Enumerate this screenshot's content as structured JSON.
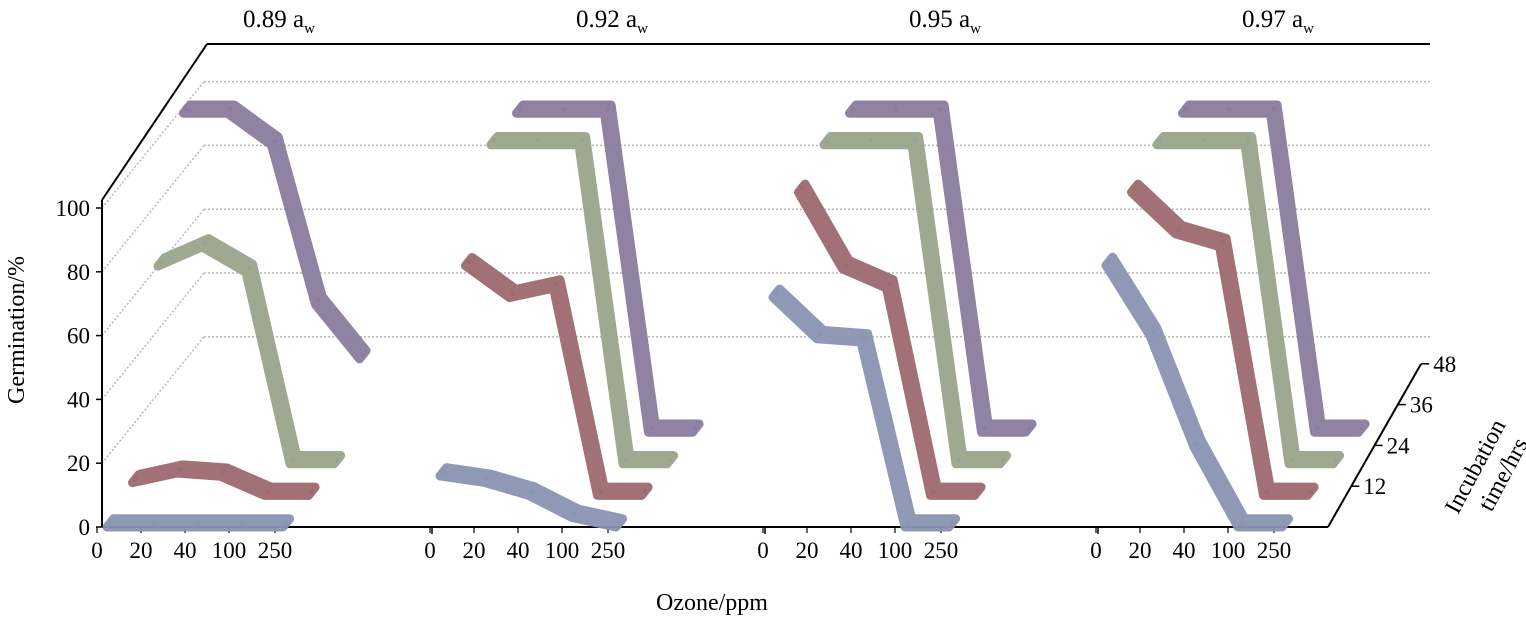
{
  "chart_data": {
    "type": "line",
    "chart_kind": "3d-ribbon-line",
    "xlabel": "Ozone/ppm",
    "ylabel": "Germination/%",
    "zlabel_line1": "Incubation",
    "zlabel_line2": "time/hrs",
    "categories": [
      "0",
      "20",
      "40",
      "100",
      "250"
    ],
    "yticks": [
      "0",
      "20",
      "40",
      "60",
      "80",
      "100"
    ],
    "ylim": [
      0,
      100
    ],
    "zticks": [
      "12",
      "24",
      "36",
      "48"
    ],
    "grid": true,
    "panel_titles": [
      {
        "main": "0.89 a",
        "sub": "w"
      },
      {
        "main": "0.92 a",
        "sub": "w"
      },
      {
        "main": "0.95 a",
        "sub": "w"
      },
      {
        "main": "0.97 a",
        "sub": "w"
      }
    ],
    "series_colors": {
      "12": "#8a94b3",
      "24": "#9e6a6e",
      "36": "#9aa48c",
      "48": "#8a7c9e"
    },
    "panels": [
      {
        "series": [
          {
            "time": "12",
            "values": [
              0,
              0,
              0,
              0,
              0
            ]
          },
          {
            "time": "24",
            "values": [
              4,
              7,
              6,
              0,
              0
            ]
          },
          {
            "time": "36",
            "values": [
              62,
              68,
              60,
              0,
              0
            ]
          },
          {
            "time": "48",
            "values": [
              100,
              100,
              90,
              40,
              23
            ]
          }
        ]
      },
      {
        "series": [
          {
            "time": "12",
            "values": [
              16,
              14,
              10,
              3,
              0
            ]
          },
          {
            "time": "24",
            "values": [
              72,
              62,
              65,
              0,
              0
            ]
          },
          {
            "time": "36",
            "values": [
              100,
              100,
              100,
              0,
              0
            ]
          },
          {
            "time": "48",
            "values": [
              100,
              100,
              100,
              0,
              0
            ]
          }
        ]
      },
      {
        "series": [
          {
            "time": "12",
            "values": [
              72,
              59,
              58,
              0,
              0
            ]
          },
          {
            "time": "24",
            "values": [
              95,
              71,
              65,
              0,
              0
            ]
          },
          {
            "time": "36",
            "values": [
              100,
              100,
              100,
              0,
              0
            ]
          },
          {
            "time": "48",
            "values": [
              100,
              100,
              100,
              0,
              0
            ]
          }
        ]
      },
      {
        "series": [
          {
            "time": "12",
            "values": [
              82,
              60,
              25,
              0,
              0
            ]
          },
          {
            "time": "24",
            "values": [
              95,
              82,
              78,
              0,
              0
            ]
          },
          {
            "time": "36",
            "values": [
              100,
              100,
              100,
              0,
              0
            ]
          },
          {
            "time": "48",
            "values": [
              100,
              100,
              100,
              0,
              0
            ]
          }
        ]
      }
    ]
  }
}
